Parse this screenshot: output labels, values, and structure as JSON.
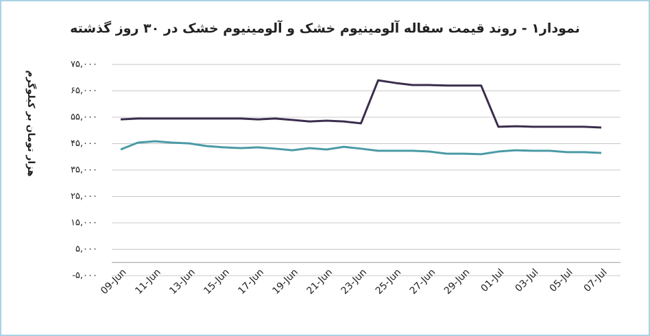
{
  "chart_data": {
    "type": "line",
    "title": "نمودار۱ - روند قیمت سفاله آلومینیوم خشک و آلومینیوم خشک در ۳۰ روز گذشته",
    "y_label": "هزار تومان بر کیلوگرم",
    "categories": [
      "09-Jun",
      null,
      "11-Jun",
      null,
      "13-Jun",
      null,
      "15-Jun",
      null,
      "17-Jun",
      null,
      "19-Jun",
      null,
      "21-Jun",
      null,
      "23-Jun",
      null,
      "25-Jun",
      null,
      "27-Jun",
      null,
      "29-Jun",
      null,
      "01-Jul",
      null,
      "03-Jul",
      null,
      "05-Jul",
      null,
      "07-Jul"
    ],
    "series": [
      {
        "color": "#3b2d4d",
        "values": [
          54200,
          54500,
          54500,
          54500,
          54500,
          54500,
          54500,
          54500,
          54200,
          54500,
          54000,
          53400,
          53700,
          53400,
          52700,
          69000,
          68000,
          67200,
          67200,
          67000,
          67000,
          67000,
          51400,
          51600,
          51400,
          51400,
          51400,
          51400,
          51100
        ]
      },
      {
        "color": "#4a9aa5",
        "values": [
          42800,
          45400,
          45900,
          45400,
          45100,
          44100,
          43600,
          43300,
          43600,
          43100,
          42500,
          43300,
          42800,
          43800,
          43100,
          42300,
          42300,
          42300,
          42000,
          41200,
          41200,
          41000,
          42000,
          42500,
          42300,
          42300,
          41800,
          41800,
          41500
        ]
      }
    ],
    "ylim": [
      -5000,
      75000
    ],
    "yticks": [
      {
        "value": -5000,
        "label": "-۵,۰۰۰"
      },
      {
        "value": 5000,
        "label": "۵,۰۰۰"
      },
      {
        "value": 15000,
        "label": "۱۵,۰۰۰"
      },
      {
        "value": 25000,
        "label": "۲۵,۰۰۰"
      },
      {
        "value": 35000,
        "label": "۳۵,۰۰۰"
      },
      {
        "value": 45000,
        "label": "۴۵,۰۰۰"
      },
      {
        "value": 55000,
        "label": "۵۵,۰۰۰"
      },
      {
        "value": 65000,
        "label": "۶۵,۰۰۰"
      },
      {
        "value": 75000,
        "label": "۷۵,۰۰۰"
      }
    ],
    "grid": true
  }
}
